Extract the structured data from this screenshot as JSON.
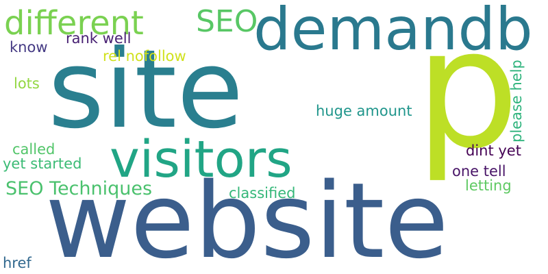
{
  "word_cloud": {
    "words": [
      {
        "id": "website",
        "text": "website",
        "color": "#3b5e8c"
      },
      {
        "id": "site",
        "text": "site",
        "color": "#2a7f8f"
      },
      {
        "id": "p",
        "text": "p",
        "color": "#bddf26"
      },
      {
        "id": "demandb",
        "text": "demandb",
        "color": "#2a798e"
      },
      {
        "id": "visitors",
        "text": "visitors",
        "color": "#21a585"
      },
      {
        "id": "different",
        "text": "different",
        "color": "#7ad151"
      },
      {
        "id": "seo",
        "text": "SEO",
        "color": "#58c765"
      },
      {
        "id": "seo-techniques",
        "text": "SEO Techniques",
        "color": "#4ac16d"
      },
      {
        "id": "rank-well",
        "text": "rank well",
        "color": "#482173"
      },
      {
        "id": "rel-nofollow",
        "text": "rel nofollow",
        "color": "#d0e11c"
      },
      {
        "id": "know",
        "text": "know",
        "color": "#443983"
      },
      {
        "id": "lots",
        "text": "lots",
        "color": "#93d741"
      },
      {
        "id": "huge-amount",
        "text": "huge amount",
        "color": "#1f958b"
      },
      {
        "id": "please-help",
        "text": "please help",
        "color": "#2eb37c"
      },
      {
        "id": "called",
        "text": "called",
        "color": "#52c569"
      },
      {
        "id": "yet-started",
        "text": "yet started",
        "color": "#3bbb75"
      },
      {
        "id": "dint-yet",
        "text": "dint yet",
        "color": "#440154"
      },
      {
        "id": "one-tell",
        "text": "one tell",
        "color": "#481467"
      },
      {
        "id": "letting",
        "text": "letting",
        "color": "#5ec962"
      },
      {
        "id": "classified",
        "text": "classified",
        "color": "#35b779"
      },
      {
        "id": "href",
        "text": "href",
        "color": "#31688e"
      }
    ]
  }
}
